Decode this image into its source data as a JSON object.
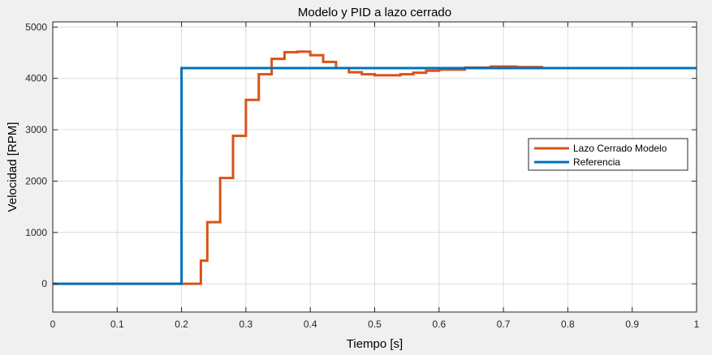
{
  "chart_data": {
    "type": "line",
    "title": "Modelo y PID a lazo cerrado",
    "xlabel": "Tiempo [s]",
    "ylabel": "Velocidad [RPM]",
    "xlim": [
      0,
      1
    ],
    "ylim": [
      -550,
      5100
    ],
    "xticks": [
      0,
      0.1,
      0.2,
      0.3,
      0.4,
      0.5,
      0.6,
      0.7,
      0.8,
      0.9,
      1
    ],
    "xtick_labels": [
      "0",
      "0.1",
      "0.2",
      "0.3",
      "0.4",
      "0.5",
      "0.6",
      "0.7",
      "0.8",
      "0.9",
      "1"
    ],
    "yticks": [
      0,
      1000,
      2000,
      3000,
      4000,
      5000
    ],
    "ytick_labels": [
      "0",
      "1000",
      "2000",
      "3000",
      "4000",
      "5000"
    ],
    "grid": true,
    "legend_position": "right",
    "series": [
      {
        "name": "Lazo Cerrado Modelo",
        "color": "#d95319",
        "step": true,
        "x": [
          0,
          0.22,
          0.23,
          0.24,
          0.26,
          0.28,
          0.3,
          0.32,
          0.34,
          0.36,
          0.38,
          0.4,
          0.42,
          0.44,
          0.46,
          0.48,
          0.5,
          0.52,
          0.54,
          0.56,
          0.58,
          0.6,
          0.64,
          0.68,
          0.72,
          0.76,
          1.0
        ],
        "y": [
          0,
          0,
          450,
          1200,
          2060,
          2880,
          3580,
          4080,
          4380,
          4510,
          4520,
          4450,
          4320,
          4200,
          4120,
          4080,
          4060,
          4060,
          4080,
          4110,
          4150,
          4170,
          4210,
          4230,
          4220,
          4200,
          4200
        ]
      },
      {
        "name": "Referencia",
        "color": "#0072bd",
        "step": true,
        "x": [
          0,
          0.2,
          1.0
        ],
        "y": [
          0,
          4200,
          4200
        ]
      }
    ]
  }
}
